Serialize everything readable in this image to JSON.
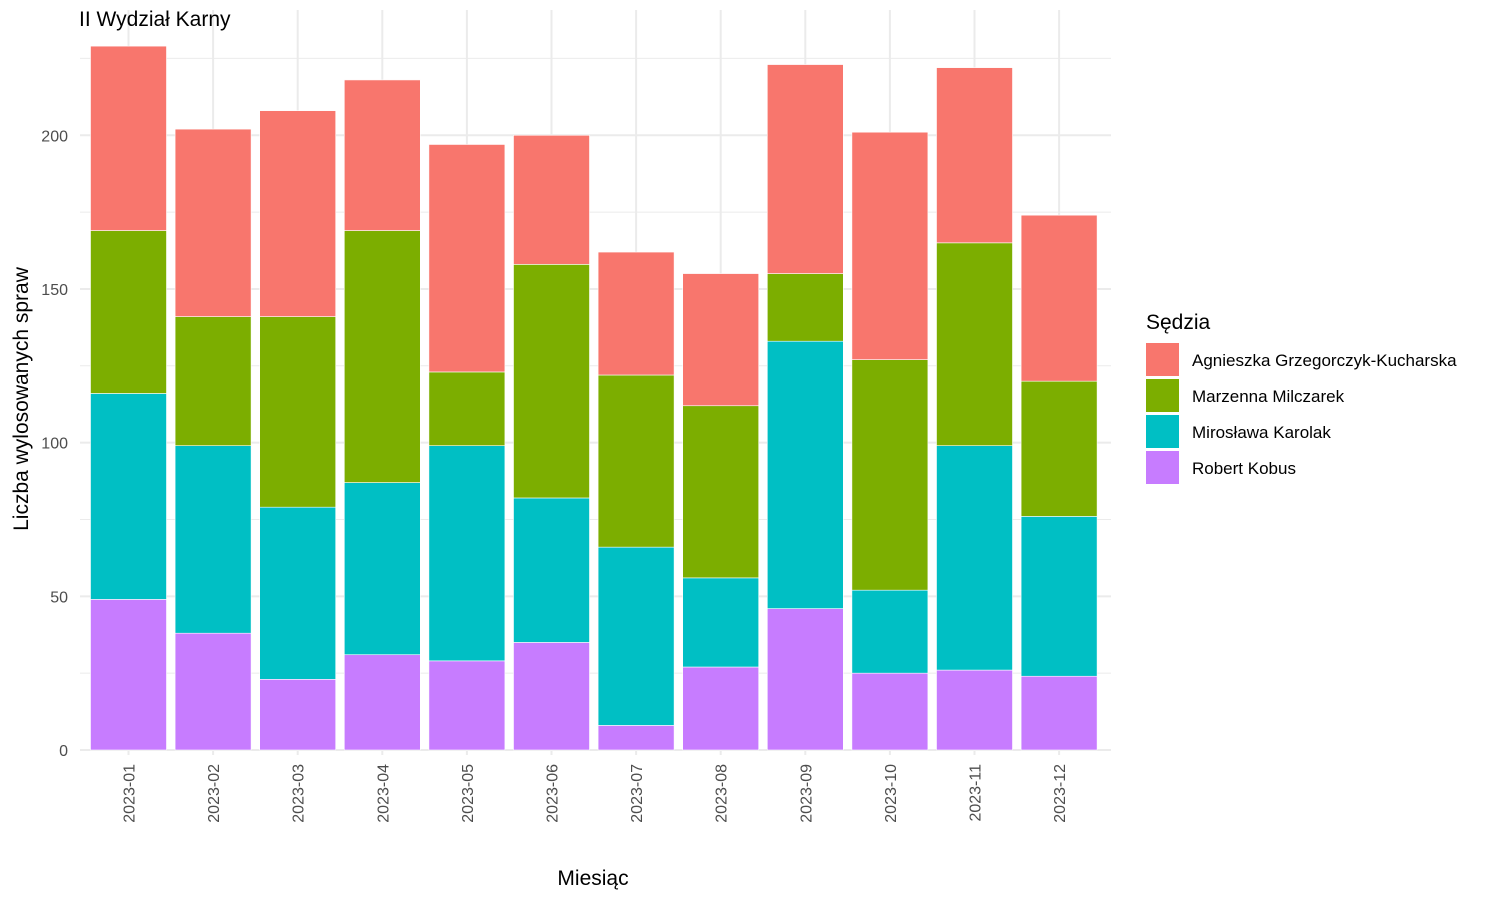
{
  "chart_data": {
    "type": "bar",
    "stacked": true,
    "title": "II Wydział Karny",
    "xlabel": "Miesiąc",
    "ylabel": "Liczba wylosowanych spraw",
    "ylim": [
      0,
      229
    ],
    "yticks": [
      0,
      50,
      100,
      150,
      200
    ],
    "grid": true,
    "legend_position": "right",
    "legend_title": "Sędzia",
    "categories": [
      "2023-01",
      "2023-02",
      "2023-03",
      "2023-04",
      "2023-05",
      "2023-06",
      "2023-07",
      "2023-08",
      "2023-09",
      "2023-10",
      "2023-11",
      "2023-12"
    ],
    "series": [
      {
        "name": "Robert Kobus",
        "color": "#C77CFF",
        "values": [
          49,
          38,
          23,
          31,
          29,
          35,
          8,
          27,
          46,
          25,
          26,
          24
        ]
      },
      {
        "name": "Mirosława Karolak",
        "color": "#00BFC4",
        "values": [
          67,
          61,
          56,
          56,
          70,
          47,
          58,
          29,
          87,
          27,
          73,
          52
        ]
      },
      {
        "name": "Marzenna Milczarek",
        "color": "#7CAE00",
        "values": [
          53,
          42,
          62,
          82,
          24,
          76,
          56,
          56,
          22,
          75,
          66,
          44
        ]
      },
      {
        "name": "Agnieszka Grzegorczyk-Kucharska",
        "color": "#F8766D",
        "values": [
          60,
          61,
          67,
          49,
          74,
          42,
          40,
          43,
          68,
          74,
          57,
          54
        ]
      }
    ],
    "legend_order": [
      "Agnieszka Grzegorczyk-Kucharska",
      "Marzenna Milczarek",
      "Mirosława Karolak",
      "Robert Kobus"
    ]
  }
}
